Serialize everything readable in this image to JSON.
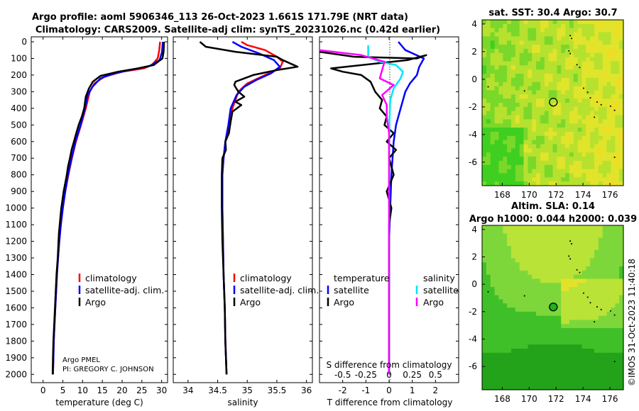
{
  "header": {
    "title_line1": "Argo profile: aoml 5906346_113 26-Oct-2023 1.661S 171.79E (NRT data)",
    "title_line2": "Climatology: CARS2009. Satellite-adj clim: synTS_20231026.nc (0.42d earlier)"
  },
  "colors": {
    "climatology": "#ff0000",
    "satellite": "#0000ff",
    "argo": "#000000",
    "sal_satellite": "#00e5ff",
    "sal_argo": "#ff00ff"
  },
  "chart_data": [
    {
      "type": "line",
      "panel": "temperature",
      "xlabel": "temperature (deg C)",
      "x_ticks": [
        "0",
        "5",
        "10",
        "15",
        "20",
        "25",
        "30"
      ],
      "y_ticks": [
        "0",
        "100",
        "200",
        "300",
        "400",
        "500",
        "600",
        "700",
        "800",
        "900",
        "1000",
        "1100",
        "1200",
        "1300",
        "1400",
        "1500",
        "1600",
        "1700",
        "1800",
        "1900",
        "2000"
      ],
      "xlim": [
        -3,
        31.5
      ],
      "ylim": [
        2050,
        0
      ],
      "legend": {
        "climatology": "climatology",
        "satellite": "satellite-adj. clim.",
        "argo": "Argo"
      },
      "credit_line1": "Argo PMEL",
      "credit_line2": "PI: GREGORY C. JOHNSON",
      "series": [
        {
          "name": "climatology",
          "points": [
            [
              29.6,
              0
            ],
            [
              29.4,
              50
            ],
            [
              29.0,
              100
            ],
            [
              27.5,
              140
            ],
            [
              25.5,
              160
            ],
            [
              20,
              180
            ],
            [
              15.5,
              210
            ],
            [
              13.0,
              250
            ],
            [
              11.8,
              300
            ],
            [
              10.8,
              400
            ],
            [
              9.6,
              500
            ],
            [
              8.3,
              600
            ],
            [
              7.3,
              700
            ],
            [
              6.4,
              800
            ],
            [
              5.6,
              900
            ],
            [
              5.0,
              1000
            ],
            [
              4.5,
              1100
            ],
            [
              4.1,
              1200
            ],
            [
              3.8,
              1300
            ],
            [
              3.5,
              1400
            ],
            [
              3.3,
              1500
            ],
            [
              3.1,
              1600
            ],
            [
              2.9,
              1700
            ],
            [
              2.7,
              1800
            ],
            [
              2.6,
              1900
            ],
            [
              2.5,
              2000
            ]
          ]
        },
        {
          "name": "satellite-adj",
          "points": [
            [
              30.3,
              0
            ],
            [
              30.1,
              60
            ],
            [
              29.5,
              110
            ],
            [
              27.0,
              145
            ],
            [
              23,
              165
            ],
            [
              18,
              190
            ],
            [
              14.5,
              220
            ],
            [
              12.5,
              270
            ],
            [
              11.3,
              320
            ],
            [
              10.6,
              400
            ],
            [
              9.5,
              500
            ],
            [
              8.2,
              600
            ],
            [
              7.2,
              700
            ],
            [
              6.3,
              800
            ],
            [
              5.6,
              900
            ],
            [
              5.0,
              1000
            ],
            [
              4.5,
              1100
            ],
            [
              4.1,
              1200
            ],
            [
              3.8,
              1300
            ],
            [
              3.5,
              1400
            ],
            [
              3.3,
              1500
            ],
            [
              3.1,
              1600
            ],
            [
              2.9,
              1700
            ],
            [
              2.7,
              1800
            ],
            [
              2.6,
              1900
            ],
            [
              2.5,
              2000
            ]
          ]
        },
        {
          "name": "argo",
          "points": [
            [
              30.6,
              0
            ],
            [
              30.5,
              60
            ],
            [
              30.2,
              100
            ],
            [
              28.0,
              140
            ],
            [
              24.0,
              160
            ],
            [
              19,
              180
            ],
            [
              14.5,
              205
            ],
            [
              12.6,
              240
            ],
            [
              11.6,
              280
            ],
            [
              10.8,
              330
            ],
            [
              10.4,
              400
            ],
            [
              9.8,
              450
            ],
            [
              9.0,
              500
            ],
            [
              8.4,
              550
            ],
            [
              7.8,
              600
            ],
            [
              7.2,
              650
            ],
            [
              6.8,
              700
            ],
            [
              6.3,
              750
            ],
            [
              6.0,
              800
            ],
            [
              5.6,
              850
            ],
            [
              5.2,
              900
            ],
            [
              4.9,
              950
            ],
            [
              4.6,
              1000
            ],
            [
              4.4,
              1050
            ],
            [
              4.2,
              1100
            ],
            [
              4.0,
              1150
            ],
            [
              3.9,
              1200
            ],
            [
              3.7,
              1300
            ],
            [
              3.4,
              1400
            ],
            [
              3.2,
              1500
            ],
            [
              3.0,
              1600
            ],
            [
              2.8,
              1700
            ],
            [
              2.6,
              1800
            ],
            [
              2.5,
              1900
            ],
            [
              2.4,
              2000
            ]
          ]
        }
      ]
    },
    {
      "type": "line",
      "panel": "salinity",
      "xlabel": "salinity",
      "x_ticks": [
        "34",
        "34.5",
        "35",
        "35.5",
        "36"
      ],
      "xlim": [
        33.75,
        36.1
      ],
      "ylim": [
        2050,
        0
      ],
      "legend": {
        "climatology": "climatology",
        "satellite": "satellite-adj. clim.",
        "argo": "Argo"
      },
      "series": [
        {
          "name": "climatology",
          "points": [
            [
              34.9,
              0
            ],
            [
              35.0,
              20
            ],
            [
              35.3,
              50
            ],
            [
              35.5,
              90
            ],
            [
              35.6,
              120
            ],
            [
              35.55,
              160
            ],
            [
              35.3,
              200
            ],
            [
              35.0,
              250
            ],
            [
              34.85,
              300
            ],
            [
              34.75,
              400
            ],
            [
              34.7,
              500
            ],
            [
              34.63,
              600
            ],
            [
              34.6,
              700
            ],
            [
              34.58,
              800
            ],
            [
              34.58,
              1000
            ],
            [
              34.59,
              1200
            ],
            [
              34.6,
              1400
            ],
            [
              34.62,
              1600
            ],
            [
              34.63,
              1800
            ],
            [
              34.65,
              2000
            ]
          ]
        },
        {
          "name": "satellite-adj",
          "points": [
            [
              34.75,
              0
            ],
            [
              34.9,
              30
            ],
            [
              35.2,
              70
            ],
            [
              35.45,
              110
            ],
            [
              35.55,
              150
            ],
            [
              35.4,
              190
            ],
            [
              35.15,
              230
            ],
            [
              34.95,
              270
            ],
            [
              34.82,
              320
            ],
            [
              34.72,
              400
            ],
            [
              34.68,
              500
            ],
            [
              34.63,
              600
            ],
            [
              34.6,
              700
            ],
            [
              34.58,
              800
            ],
            [
              34.58,
              1000
            ],
            [
              34.59,
              1200
            ],
            [
              34.6,
              1400
            ],
            [
              34.62,
              1600
            ],
            [
              34.63,
              1800
            ],
            [
              34.65,
              2000
            ]
          ]
        },
        {
          "name": "argo",
          "points": [
            [
              34.2,
              0
            ],
            [
              34.3,
              30
            ],
            [
              34.8,
              60
            ],
            [
              35.5,
              90
            ],
            [
              35.6,
              110
            ],
            [
              35.85,
              150
            ],
            [
              35.5,
              170
            ],
            [
              35.1,
              200
            ],
            [
              34.8,
              240
            ],
            [
              34.78,
              260
            ],
            [
              34.85,
              300
            ],
            [
              34.95,
              330
            ],
            [
              34.8,
              360
            ],
            [
              34.9,
              380
            ],
            [
              34.75,
              420
            ],
            [
              34.72,
              480
            ],
            [
              34.69,
              550
            ],
            [
              34.63,
              600
            ],
            [
              34.64,
              650
            ],
            [
              34.58,
              700
            ],
            [
              34.57,
              800
            ],
            [
              34.57,
              1000
            ],
            [
              34.58,
              1200
            ],
            [
              34.6,
              1400
            ],
            [
              34.62,
              1600
            ],
            [
              34.63,
              1800
            ],
            [
              34.65,
              2000
            ]
          ]
        }
      ]
    },
    {
      "type": "line",
      "panel": "difference",
      "xlabel": "T difference from climatology",
      "inner_label": "S difference from climatology",
      "x_ticks": [
        "-2",
        "-1",
        "0",
        "1",
        "2"
      ],
      "s_ticks": [
        "-0.5",
        "-0.25",
        "0",
        "0.25",
        "0.5"
      ],
      "xlim": [
        -3.0,
        3.0
      ],
      "ylim": [
        2050,
        0
      ],
      "legend": {
        "temperature": "temperature",
        "salinity": "salinity",
        "satellite": "satellite",
        "argo": "Argo"
      },
      "series": [
        {
          "name": "T satellite",
          "points": [
            [
              0.4,
              0
            ],
            [
              0.7,
              50
            ],
            [
              1.5,
              100
            ],
            [
              1.3,
              150
            ],
            [
              1.2,
              200
            ],
            [
              0.9,
              250
            ],
            [
              0.7,
              300
            ],
            [
              0.5,
              400
            ],
            [
              0.3,
              500
            ],
            [
              0.2,
              600
            ],
            [
              0.15,
              700
            ],
            [
              0.1,
              800
            ],
            [
              0.05,
              1000
            ],
            [
              0.0,
              1200
            ],
            [
              0.0,
              2000
            ]
          ]
        },
        {
          "name": "T argo",
          "points": [
            [
              -3,
              60
            ],
            [
              -1.5,
              90
            ],
            [
              1.2,
              100
            ],
            [
              1.6,
              80
            ],
            [
              0.8,
              110
            ],
            [
              -2.5,
              160
            ],
            [
              -2,
              180
            ],
            [
              -1.2,
              200
            ],
            [
              -0.8,
              240
            ],
            [
              -0.6,
              300
            ],
            [
              -0.3,
              350
            ],
            [
              -0.4,
              400
            ],
            [
              -0.1,
              450
            ],
            [
              -0.2,
              500
            ],
            [
              0.2,
              550
            ],
            [
              -0.1,
              600
            ],
            [
              0.3,
              650
            ],
            [
              0.0,
              700
            ],
            [
              0.2,
              800
            ],
            [
              -0.1,
              900
            ],
            [
              0.1,
              1000
            ],
            [
              0.0,
              1100
            ],
            [
              0.0,
              1200
            ],
            [
              0.0,
              2000
            ]
          ]
        },
        {
          "name": "S satellite",
          "points": [
            [
              -0.9,
              20
            ],
            [
              -0.9,
              90
            ],
            [
              -0.4,
              120
            ],
            [
              0.3,
              140
            ],
            [
              0.6,
              180
            ],
            [
              0.5,
              220
            ],
            [
              0.2,
              280
            ],
            [
              0.05,
              350
            ],
            [
              0.02,
              450
            ],
            [
              0.0,
              600
            ],
            [
              0.0,
              2000
            ]
          ]
        },
        {
          "name": "S argo",
          "points": [
            [
              -3,
              50
            ],
            [
              -1.2,
              80
            ],
            [
              -0.2,
              120
            ],
            [
              -0.3,
              170
            ],
            [
              -0.4,
              220
            ],
            [
              0.2,
              260
            ],
            [
              -0.3,
              320
            ],
            [
              -0.1,
              380
            ],
            [
              -0.1,
              450
            ],
            [
              0.0,
              550
            ],
            [
              0.0,
              700
            ],
            [
              0.0,
              2000
            ]
          ]
        }
      ]
    },
    {
      "type": "heatmap",
      "panel": "sst_map",
      "title": "sat. SST: 30.4 Argo: 30.7",
      "x_ticks": [
        "168",
        "170",
        "172",
        "174",
        "176"
      ],
      "y_ticks": [
        "4",
        "2",
        "0",
        "-2",
        "-4",
        "-6"
      ],
      "xlim": [
        166.5,
        177.0
      ],
      "ylim": [
        -7.7,
        4.3
      ],
      "marker": [
        171.79,
        -1.661
      ],
      "colormap": [
        "#3fcf20",
        "#7ad82a",
        "#b6e12f",
        "#e0e42a",
        "#efdd24"
      ]
    },
    {
      "type": "heatmap",
      "panel": "sla_map",
      "title_line1": "Altim. SLA: 0.14",
      "title_line2": "Argo h1000: 0.044 h2000: 0.039",
      "x_ticks": [
        "168",
        "170",
        "172",
        "174",
        "176"
      ],
      "y_ticks": [
        "4",
        "2",
        "0",
        "-2",
        "-4",
        "-6"
      ],
      "xlim": [
        166.5,
        177.0
      ],
      "ylim": [
        -7.7,
        4.3
      ],
      "marker": [
        171.79,
        -1.661
      ],
      "colormap": [
        "#23a31a",
        "#40c028",
        "#7ed73a",
        "#b9e336",
        "#e3e22a"
      ]
    }
  ],
  "footer": {
    "watermark": "©IMOS 31-Oct-2023 11:40:18"
  }
}
